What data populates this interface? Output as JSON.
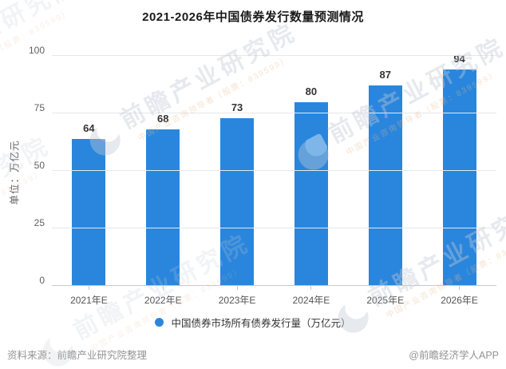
{
  "title": "2021-2026年中国债券发行数量预测情况",
  "chart_data": {
    "type": "bar",
    "categories": [
      "2021年E",
      "2022年E",
      "2023年E",
      "2024年E",
      "2025年E",
      "2026年E"
    ],
    "values": [
      64,
      68,
      73,
      80,
      87,
      94
    ],
    "title": "2021-2026年中国债券发行数量预测情况",
    "xlabel": "",
    "ylabel": "单位：万亿元",
    "ylim": [
      0,
      100
    ],
    "yticks": [
      0,
      25,
      50,
      75,
      100
    ],
    "grid": true,
    "bar_color": "#2a86dc",
    "legend": [
      "中国债券市场所有债券发行量（万亿元）"
    ],
    "legend_position": "bottom"
  },
  "legend": {
    "label": "中国债券市场所有债券发行量（万亿元）",
    "marker_color": "#2a86dc"
  },
  "y_axis_name": "单位：万亿元",
  "footer": {
    "source": "资料来源：前瞻产业研究院整理",
    "credit": "@前瞻经济学人APP"
  },
  "watermark": {
    "big_text": "前瞻产业研究院",
    "small_text": "中国产业咨询领导者（股票：839599）"
  },
  "colors": {
    "bar": "#2a86dc",
    "grid": "#e6e8eb",
    "axis": "#c9c9c9",
    "footer_text": "#939393"
  }
}
